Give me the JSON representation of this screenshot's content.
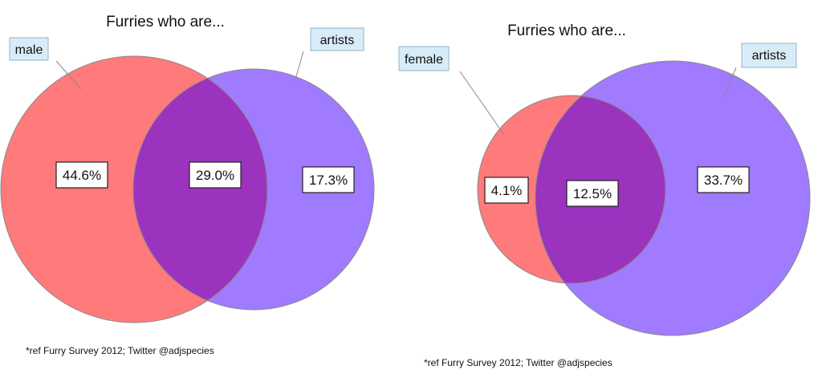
{
  "colors": {
    "red": "#ff7a7a",
    "purple": "#a07aff",
    "overlap": "#9b33bf",
    "outline": "#8a8a8a",
    "tag_fill": "#d7ecf7",
    "tag_border": "#8fb3c8"
  },
  "diagrams": [
    {
      "title": "Furries who are...",
      "set_a": {
        "label": "male",
        "only_value": "44.6%"
      },
      "set_b": {
        "label": "artists",
        "only_value": "17.3%"
      },
      "overlap_value": "29.0%",
      "source": "*ref Furry Survey 2012; Twitter @adjspecies"
    },
    {
      "title": "Furries who are...",
      "set_a": {
        "label": "female",
        "only_value": "4.1%"
      },
      "set_b": {
        "label": "artists",
        "only_value": "33.7%"
      },
      "overlap_value": "12.5%",
      "source": "*ref Furry Survey 2012; Twitter @adjspecies"
    }
  ]
}
